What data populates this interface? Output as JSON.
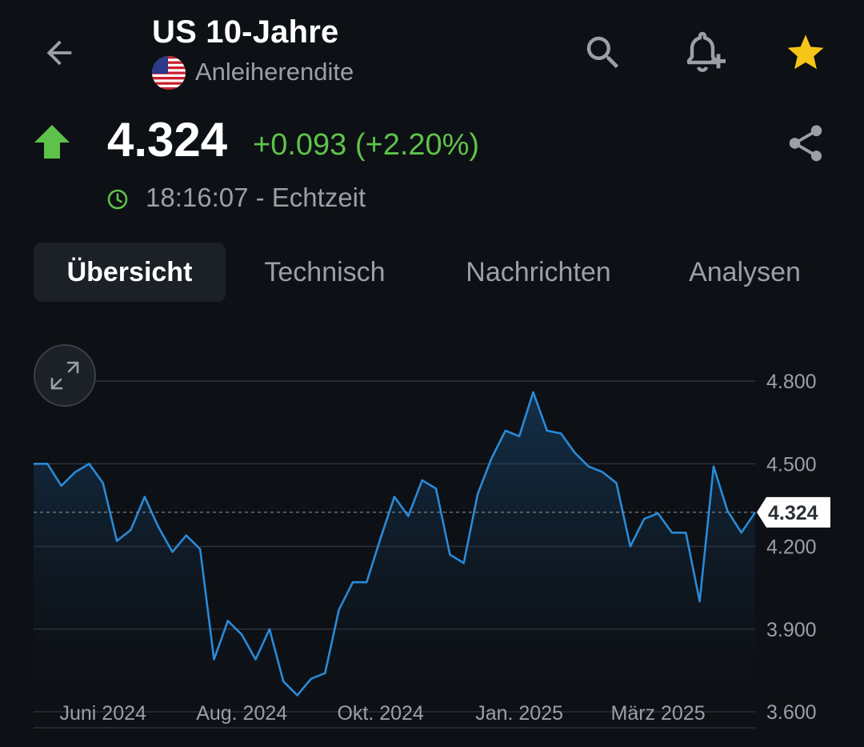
{
  "header": {
    "title": "US 10-Jahre",
    "subtitle": "Anleiherendite",
    "back_icon": "arrow-left-icon",
    "search_icon": "search-icon",
    "alert_icon": "add-alert-bell-icon",
    "favorite_icon": "star-icon",
    "flag_icon": "us-flag-icon"
  },
  "quote": {
    "price": "4.324",
    "change": "+0.093 (+2.20%)",
    "time": "18:16:07 - Echtzeit",
    "direction_icon": "arrow-up-icon",
    "share_icon": "share-icon",
    "clock_icon": "clock-icon"
  },
  "tabs": [
    {
      "label": "Übersicht",
      "active": true
    },
    {
      "label": "Technisch",
      "active": false
    },
    {
      "label": "Nachrichten",
      "active": false
    },
    {
      "label": "Analysen",
      "active": false
    }
  ],
  "colors": {
    "background": "#0d1014",
    "positive": "#5ec24a",
    "star": "#f5c518",
    "line": "#2a8ad8",
    "muted_text": "#9aa0a6"
  },
  "chart_data": {
    "type": "area",
    "x_tick_labels": [
      "Juni 2024",
      "Aug. 2024",
      "Okt. 2024",
      "Jan. 2025",
      "März 2025"
    ],
    "x_tick_positions": [
      5,
      15,
      25,
      35,
      45
    ],
    "y_ticks": [
      4.8,
      4.5,
      4.2,
      3.9,
      3.6
    ],
    "y_tick_labels": [
      "4.800",
      "4.500",
      "4.200",
      "3.900",
      "3.600"
    ],
    "ylim": [
      3.6,
      4.8
    ],
    "current_value": 4.324,
    "current_label": "4.324",
    "grid": true,
    "values": [
      4.5,
      4.5,
      4.42,
      4.47,
      4.5,
      4.43,
      4.22,
      4.26,
      4.38,
      4.27,
      4.18,
      4.24,
      4.19,
      3.79,
      3.93,
      3.88,
      3.79,
      3.9,
      3.71,
      3.66,
      3.72,
      3.74,
      3.97,
      4.07,
      4.07,
      4.23,
      4.38,
      4.31,
      4.44,
      4.41,
      4.17,
      4.14,
      4.39,
      4.52,
      4.62,
      4.6,
      4.76,
      4.62,
      4.61,
      4.54,
      4.49,
      4.47,
      4.43,
      4.2,
      4.3,
      4.32,
      4.25,
      4.25,
      4.0,
      4.49,
      4.33,
      4.25,
      4.324
    ]
  }
}
